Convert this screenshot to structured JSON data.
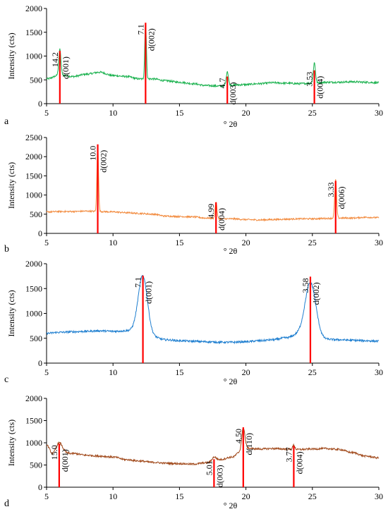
{
  "chart_data": [
    {
      "type": "line",
      "panel_label": "a",
      "ylabel": "Intensity (cts)",
      "xlabel": "° 2θ",
      "xlim": [
        5,
        30
      ],
      "ylim": [
        0,
        2000
      ],
      "xticks": [
        5,
        10,
        15,
        20,
        25,
        30
      ],
      "yticks": [
        0,
        500,
        1000,
        1500,
        2000
      ],
      "line_color": "#1bb24f",
      "marker_color": "#ff0000",
      "baseline": [
        [
          5,
          520
        ],
        [
          6,
          600
        ],
        [
          7,
          570
        ],
        [
          8,
          620
        ],
        [
          9,
          660
        ],
        [
          10,
          590
        ],
        [
          11,
          570
        ],
        [
          12,
          520
        ],
        [
          13,
          520
        ],
        [
          14,
          480
        ],
        [
          15,
          450
        ],
        [
          16,
          420
        ],
        [
          17,
          380
        ],
        [
          18,
          370
        ],
        [
          19,
          390
        ],
        [
          20,
          400
        ],
        [
          21,
          420
        ],
        [
          22,
          440
        ],
        [
          23,
          430
        ],
        [
          24,
          420
        ],
        [
          25,
          430
        ],
        [
          26,
          450
        ],
        [
          27,
          450
        ],
        [
          28,
          460
        ],
        [
          29,
          450
        ],
        [
          30,
          440
        ]
      ],
      "peaks": [
        {
          "x": 6.0,
          "height": 1140,
          "width": 0.08
        },
        {
          "x": 12.45,
          "height": 1720,
          "width": 0.06
        },
        {
          "x": 18.6,
          "height": 680,
          "width": 0.08
        },
        {
          "x": 25.15,
          "height": 860,
          "width": 0.08
        }
      ],
      "markers": [
        {
          "x": 6.0,
          "y": 1110,
          "d_value": "14.2",
          "label": "d(001)"
        },
        {
          "x": 12.45,
          "y": 1700,
          "d_value": "7.1",
          "label": "d(002)"
        },
        {
          "x": 18.6,
          "y": 570,
          "d_value": "4.7",
          "label": "d(003)"
        },
        {
          "x": 25.15,
          "y": 700,
          "d_value": "3.53",
          "label": "d(004)"
        }
      ]
    },
    {
      "type": "line",
      "panel_label": "b",
      "ylabel": "Intensity (cts)",
      "xlabel": "° 2θ",
      "xlim": [
        5,
        30
      ],
      "ylim": [
        0,
        2500
      ],
      "xticks": [
        5,
        10,
        15,
        20,
        25,
        30
      ],
      "yticks": [
        0,
        500,
        1000,
        1500,
        2000,
        2500
      ],
      "line_color": "#f28a3d",
      "marker_color": "#ff0000",
      "baseline": [
        [
          5,
          560
        ],
        [
          6,
          570
        ],
        [
          7,
          570
        ],
        [
          8,
          580
        ],
        [
          9,
          570
        ],
        [
          10,
          560
        ],
        [
          11,
          540
        ],
        [
          12,
          520
        ],
        [
          13,
          500
        ],
        [
          14,
          450
        ],
        [
          15,
          440
        ],
        [
          16,
          430
        ],
        [
          17,
          400
        ],
        [
          18,
          380
        ],
        [
          19,
          380
        ],
        [
          20,
          360
        ],
        [
          21,
          350
        ],
        [
          22,
          360
        ],
        [
          23,
          370
        ],
        [
          24,
          380
        ],
        [
          25,
          380
        ],
        [
          26,
          390
        ],
        [
          27,
          400
        ],
        [
          28,
          400
        ],
        [
          29,
          420
        ],
        [
          30,
          410
        ]
      ],
      "peaks": [
        {
          "x": 8.85,
          "height": 2320,
          "width": 0.06
        },
        {
          "x": 17.75,
          "height": 820,
          "width": 0.07
        },
        {
          "x": 26.75,
          "height": 1400,
          "width": 0.07
        }
      ],
      "markers": [
        {
          "x": 8.85,
          "y": 2320,
          "d_value": "10.0",
          "label": "d(002)"
        },
        {
          "x": 17.75,
          "y": 810,
          "d_value": "4.99",
          "label": "d(004)"
        },
        {
          "x": 26.75,
          "y": 1370,
          "d_value": "3.33",
          "label": "d(006)"
        }
      ]
    },
    {
      "type": "line",
      "panel_label": "c",
      "ylabel": "Intensity (cts)",
      "xlabel": "° 2θ",
      "xlim": [
        5,
        30
      ],
      "ylim": [
        0,
        2000
      ],
      "xticks": [
        5,
        10,
        15,
        20,
        25,
        30
      ],
      "yticks": [
        0,
        500,
        1000,
        1500,
        2000
      ],
      "line_color": "#1f7fd0",
      "marker_color": "#ff0000",
      "baseline": [
        [
          5,
          600
        ],
        [
          6,
          620
        ],
        [
          7,
          630
        ],
        [
          8,
          640
        ],
        [
          9,
          650
        ],
        [
          10,
          640
        ],
        [
          11,
          650
        ],
        [
          12,
          660
        ],
        [
          13,
          520
        ],
        [
          14,
          470
        ],
        [
          15,
          450
        ],
        [
          16,
          440
        ],
        [
          17,
          430
        ],
        [
          18,
          420
        ],
        [
          19,
          420
        ],
        [
          20,
          430
        ],
        [
          21,
          450
        ],
        [
          22,
          470
        ],
        [
          23,
          510
        ],
        [
          24,
          580
        ],
        [
          25,
          560
        ],
        [
          26,
          480
        ],
        [
          27,
          470
        ],
        [
          28,
          460
        ],
        [
          29,
          450
        ],
        [
          30,
          440
        ]
      ],
      "peaks": [
        {
          "x": 12.25,
          "height": 1760,
          "width": 0.35
        },
        {
          "x": 24.85,
          "height": 1620,
          "width": 0.4
        }
      ],
      "markers": [
        {
          "x": 12.25,
          "y": 1760,
          "d_value": "7.1",
          "label": "d(001)"
        },
        {
          "x": 24.85,
          "y": 1740,
          "d_value": "3.58",
          "label": "d(002)"
        }
      ]
    },
    {
      "type": "line",
      "panel_label": "d",
      "ylabel": "Intensity (cts)",
      "xlabel": "° 2θ",
      "xlim": [
        5,
        30
      ],
      "ylim": [
        0,
        2000
      ],
      "xticks": [
        5,
        10,
        15,
        20,
        25,
        30
      ],
      "yticks": [
        0,
        500,
        1000,
        1500,
        2000
      ],
      "line_color": "#a14a1c",
      "marker_color": "#ff0000",
      "baseline": [
        [
          5,
          950
        ],
        [
          5.5,
          720
        ],
        [
          6,
          760
        ],
        [
          7,
          760
        ],
        [
          8,
          720
        ],
        [
          9,
          700
        ],
        [
          10,
          680
        ],
        [
          11,
          620
        ],
        [
          12,
          590
        ],
        [
          13,
          560
        ],
        [
          14,
          540
        ],
        [
          15,
          530
        ],
        [
          16,
          520
        ],
        [
          17,
          550
        ],
        [
          18,
          620
        ],
        [
          19,
          680
        ],
        [
          19.5,
          780
        ],
        [
          20,
          880
        ],
        [
          21,
          860
        ],
        [
          22,
          870
        ],
        [
          23,
          860
        ],
        [
          24,
          850
        ],
        [
          25,
          860
        ],
        [
          26,
          870
        ],
        [
          27,
          850
        ],
        [
          28,
          780
        ],
        [
          29,
          700
        ],
        [
          30,
          660
        ]
      ],
      "peaks": [
        {
          "x": 5.95,
          "height": 1000,
          "width": 0.25
        },
        {
          "x": 17.6,
          "height": 680,
          "width": 0.15
        },
        {
          "x": 19.8,
          "height": 1340,
          "width": 0.12
        },
        {
          "x": 23.6,
          "height": 950,
          "width": 0.08
        }
      ],
      "markers": [
        {
          "x": 5.95,
          "y": 980,
          "d_value": "15.0",
          "label": "d(001)"
        },
        {
          "x": 17.6,
          "y": 630,
          "d_value": "5.01",
          "label": "d(003)"
        },
        {
          "x": 19.8,
          "y": 1350,
          "d_value": "4.50",
          "label": "d(110)"
        },
        {
          "x": 23.6,
          "y": 930,
          "d_value": "3.77",
          "label": "d(004)"
        }
      ]
    }
  ]
}
